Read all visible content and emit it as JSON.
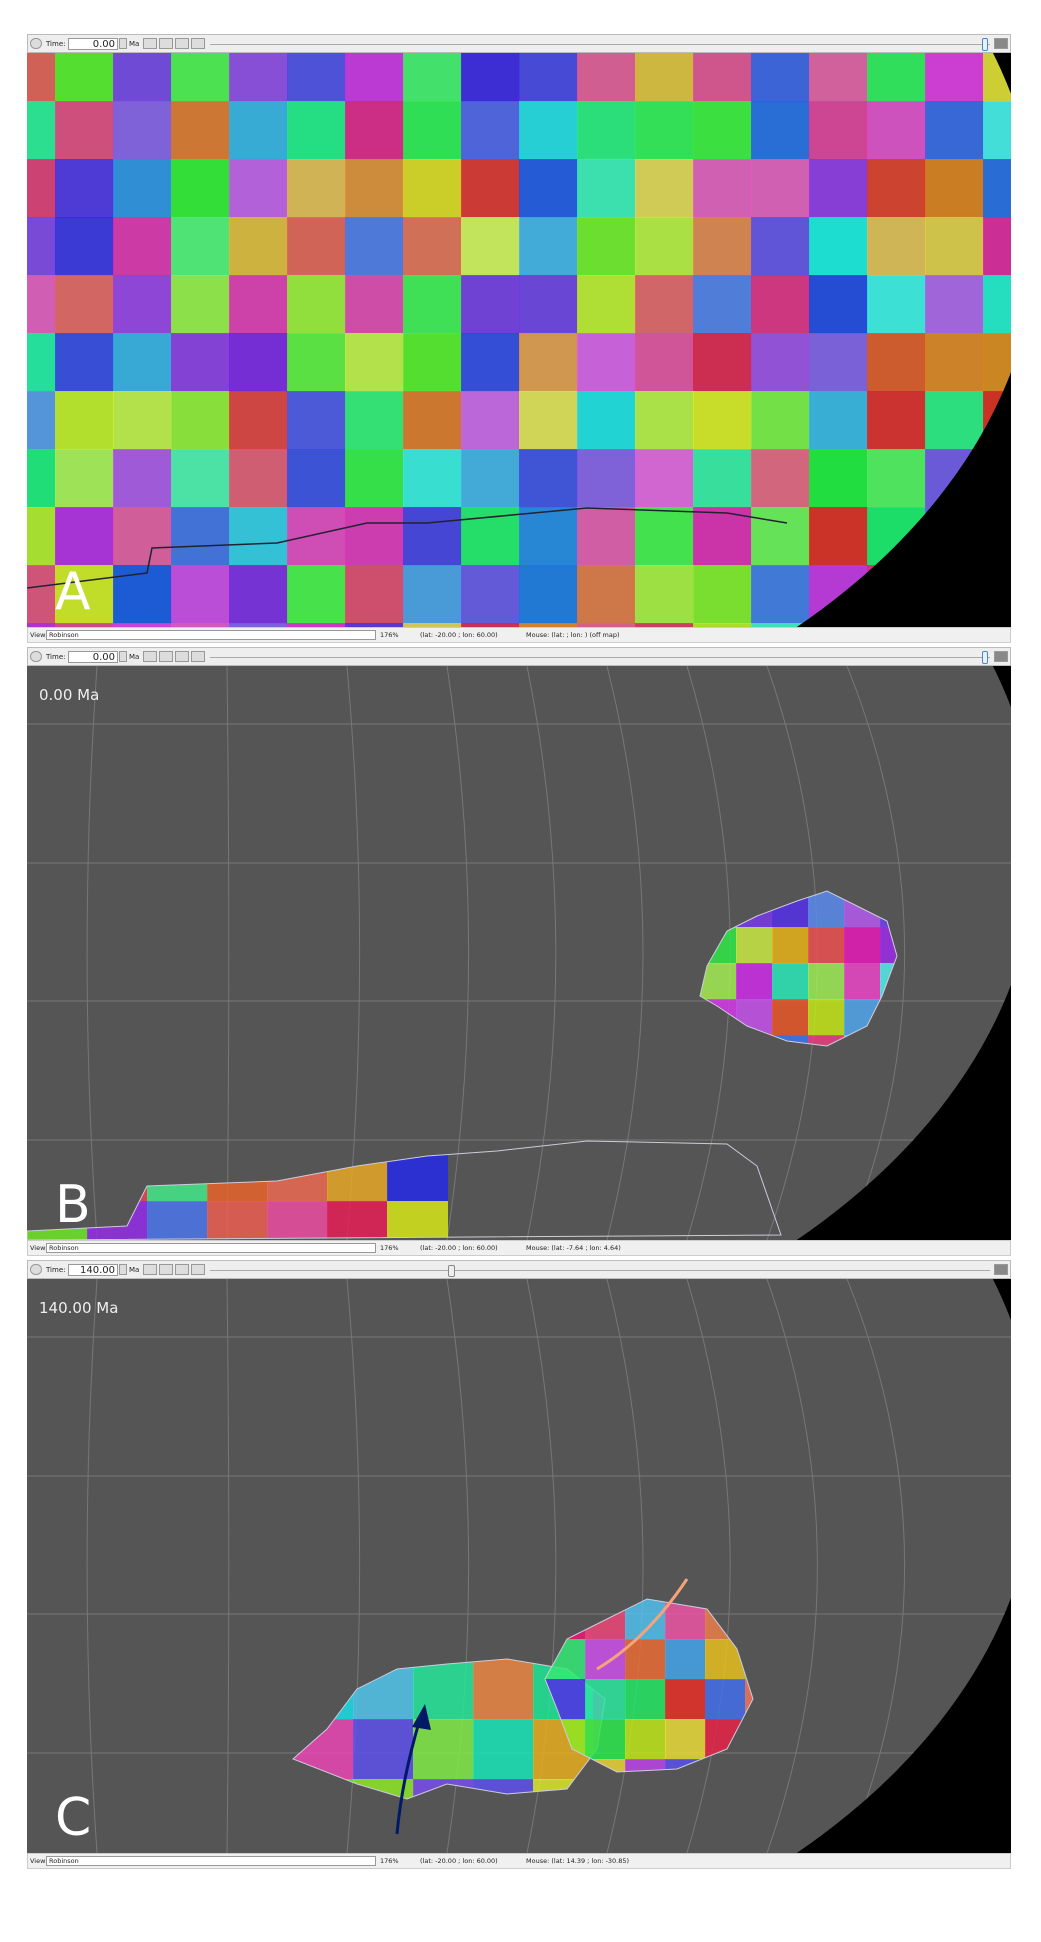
{
  "panels": [
    {
      "label": "A",
      "time_label": "Time:",
      "time": "0.00",
      "time_unit": "Ma",
      "view_label": "View:",
      "projection": "Robinson",
      "zoom": "176%",
      "camera": "(lat: -20.00 ; lon: 60.00)",
      "mouse": "Mouse: (lat: ; lon: ) (off map)"
    },
    {
      "label": "B",
      "time_label": "Time:",
      "time": "0.00",
      "time_unit": "Ma",
      "time_overlay": "0.00 Ma",
      "view_label": "View:",
      "projection": "Robinson",
      "zoom": "176%",
      "camera": "(lat: -20.00 ; lon: 60.00)",
      "mouse": "Mouse: (lat: -7.64 ; lon: 4.64)"
    },
    {
      "label": "C",
      "time_label": "Time:",
      "time": "140.00",
      "time_unit": "Ma",
      "time_overlay": "140.00 Ma",
      "view_label": "View:",
      "projection": "Robinson",
      "zoom": "176%",
      "camera": "(lat: -20.00 ; lon: 60.00)",
      "mouse": "Mouse: (lat: 14.39 ; lon: -30.85)"
    }
  ]
}
